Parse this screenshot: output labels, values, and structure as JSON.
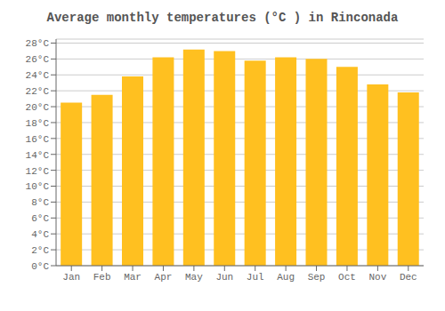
{
  "chart_data": {
    "type": "bar",
    "title": "Average monthly temperatures (°C ) in Rinconada",
    "categories": [
      "Jan",
      "Feb",
      "Mar",
      "Apr",
      "May",
      "Jun",
      "Jul",
      "Aug",
      "Sep",
      "Oct",
      "Nov",
      "Dec"
    ],
    "values": [
      20.5,
      21.5,
      23.8,
      26.2,
      27.2,
      27.0,
      25.8,
      26.2,
      26.0,
      25.0,
      22.8,
      21.8
    ],
    "color": "#FFC020",
    "ylim": [
      0,
      28.5
    ],
    "yticks": [
      {
        "value": 0,
        "label": "0°C"
      },
      {
        "value": 2,
        "label": "2°C"
      },
      {
        "value": 4,
        "label": "4°C"
      },
      {
        "value": 6,
        "label": "6°C"
      },
      {
        "value": 8,
        "label": "8°C"
      },
      {
        "value": 10,
        "label": "10°C"
      },
      {
        "value": 12,
        "label": "12°C"
      },
      {
        "value": 14,
        "label": "14°C"
      },
      {
        "value": 16,
        "label": "16°C"
      },
      {
        "value": 18,
        "label": "18°C"
      },
      {
        "value": 20,
        "label": "20°C"
      },
      {
        "value": 22,
        "label": "22°C"
      },
      {
        "value": 24,
        "label": "24°C"
      },
      {
        "value": 26,
        "label": "26°C"
      },
      {
        "value": 28,
        "label": "28°C"
      }
    ],
    "grid": true
  }
}
